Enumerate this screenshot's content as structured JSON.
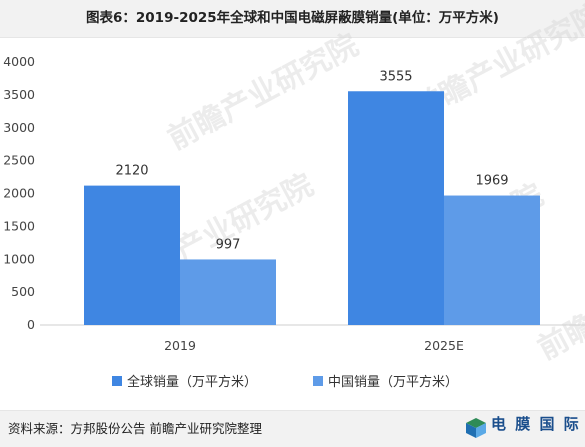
{
  "chart_data": {
    "type": "bar",
    "title": "图表6：2019-2025年全球和中国电磁屏蔽膜销量(单位：万平方米)",
    "categories": [
      "2019",
      "2025E"
    ],
    "series": [
      {
        "name": "全球销量（万平方米）",
        "values": [
          2120,
          3555
        ],
        "color": "#3f86e2"
      },
      {
        "name": "中国销量（万平方米）",
        "values": [
          997,
          1969
        ],
        "color": "#5e9be8"
      }
    ],
    "ylim": [
      0,
      4000
    ],
    "yticks": [
      0,
      500,
      1000,
      1500,
      2000,
      2500,
      3000,
      3500,
      4000
    ],
    "xlabel": "",
    "ylabel": "",
    "grid": false,
    "legend_position": "bottom-center"
  },
  "source": "资料来源：方邦股份公告 前瞻产业研究院整理",
  "watermark": "前瞻产业研究院",
  "logo_text": "电 膜 国 际"
}
